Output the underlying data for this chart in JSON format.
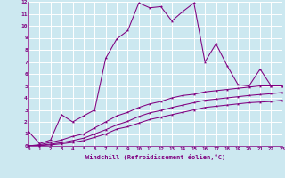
{
  "background_color": "#cce8f0",
  "grid_color": "#ffffff",
  "line_color": "#800080",
  "xlabel": "Windchill (Refroidissement éolien,°C)",
  "xlim": [
    0,
    23
  ],
  "ylim": [
    0,
    12
  ],
  "xtick_labels": [
    "0",
    "1",
    "2",
    "3",
    "4",
    "5",
    "6",
    "7",
    "8",
    "9",
    "10",
    "11",
    "12",
    "13",
    "14",
    "15",
    "16",
    "17",
    "18",
    "19",
    "20",
    "21",
    "22",
    "23"
  ],
  "ytick_labels": [
    "0",
    "1",
    "2",
    "3",
    "4",
    "5",
    "6",
    "7",
    "8",
    "9",
    "10",
    "11",
    "12"
  ],
  "line1_y": [
    1.2,
    0.2,
    0.5,
    2.6,
    2.0,
    2.5,
    3.0,
    7.3,
    8.9,
    9.6,
    11.9,
    11.5,
    11.6,
    10.4,
    11.2,
    11.9,
    7.0,
    8.5,
    6.7,
    5.1,
    5.0,
    6.4,
    5.0,
    5.0
  ],
  "line2_y": [
    0.0,
    0.1,
    0.3,
    0.5,
    0.8,
    1.0,
    1.5,
    2.0,
    2.5,
    2.8,
    3.2,
    3.5,
    3.7,
    4.0,
    4.2,
    4.3,
    4.5,
    4.6,
    4.7,
    4.8,
    4.9,
    5.0,
    5.0,
    5.0
  ],
  "line3_y": [
    0.0,
    0.05,
    0.15,
    0.28,
    0.45,
    0.65,
    1.0,
    1.35,
    1.75,
    2.05,
    2.45,
    2.75,
    2.95,
    3.2,
    3.4,
    3.6,
    3.8,
    3.9,
    4.0,
    4.1,
    4.2,
    4.28,
    4.35,
    4.45
  ],
  "line4_y": [
    0.0,
    0.02,
    0.08,
    0.18,
    0.3,
    0.45,
    0.72,
    1.0,
    1.4,
    1.6,
    1.9,
    2.2,
    2.4,
    2.6,
    2.8,
    3.0,
    3.2,
    3.3,
    3.4,
    3.5,
    3.6,
    3.65,
    3.7,
    3.8
  ]
}
